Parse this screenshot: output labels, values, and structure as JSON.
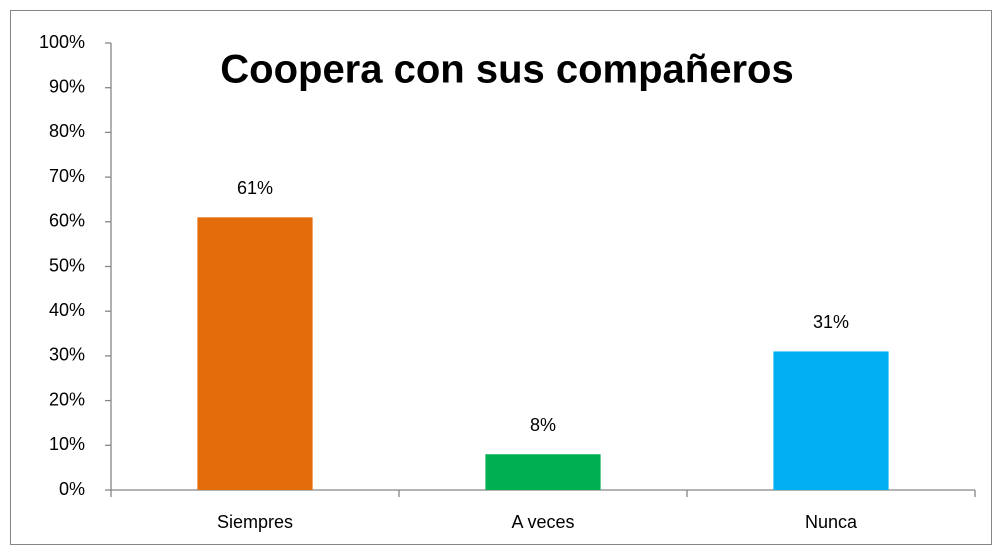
{
  "chart_data": {
    "type": "bar",
    "title": "Coopera con sus compañeros",
    "categories": [
      "Siempres",
      "A veces",
      "Nunca"
    ],
    "values": [
      61,
      8,
      31
    ],
    "value_labels": [
      "61%",
      "8%",
      "31%"
    ],
    "colors": [
      "#e36c0a",
      "#00b050",
      "#00b0f0"
    ],
    "ylim": [
      0,
      100
    ],
    "yticks": [
      {
        "value": 0,
        "label": "0%"
      },
      {
        "value": 10,
        "label": "10%"
      },
      {
        "value": 20,
        "label": "20%"
      },
      {
        "value": 30,
        "label": "30%"
      },
      {
        "value": 40,
        "label": "40%"
      },
      {
        "value": 50,
        "label": "50%"
      },
      {
        "value": 60,
        "label": "60%"
      },
      {
        "value": 70,
        "label": "70%"
      },
      {
        "value": 80,
        "label": "80%"
      },
      {
        "value": 90,
        "label": "90%"
      },
      {
        "value": 100,
        "label": "100%"
      }
    ],
    "grid": false
  }
}
